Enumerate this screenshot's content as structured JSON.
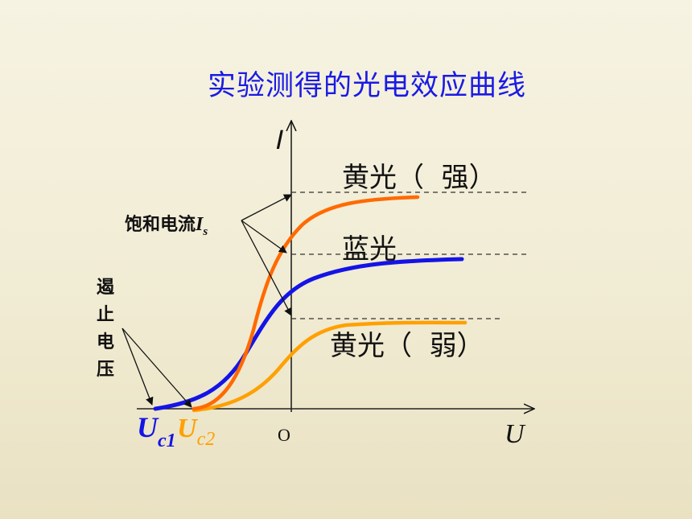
{
  "title": "实验测得的光电效应曲线",
  "axes": {
    "y_label": "I",
    "x_label": "U",
    "origin_label": "O"
  },
  "curves": [
    {
      "label": "黄光（  强）",
      "color": "#ff6a00"
    },
    {
      "label": "蓝光",
      "color": "#1414e6"
    },
    {
      "label": "黄光（  弱）",
      "color": "#ffa000"
    }
  ],
  "annotations": {
    "saturation_current": {
      "text": "饱和电流",
      "symbol": "I",
      "subscript": "s"
    },
    "stopping_voltage": {
      "chars": [
        "遏",
        "止",
        "电",
        "压"
      ]
    },
    "uc1": {
      "symbol": "U",
      "subscript": "c1",
      "color": "#1414e6"
    },
    "uc2": {
      "symbol": "U",
      "subscript": "c2",
      "color": "#ffa000"
    }
  }
}
